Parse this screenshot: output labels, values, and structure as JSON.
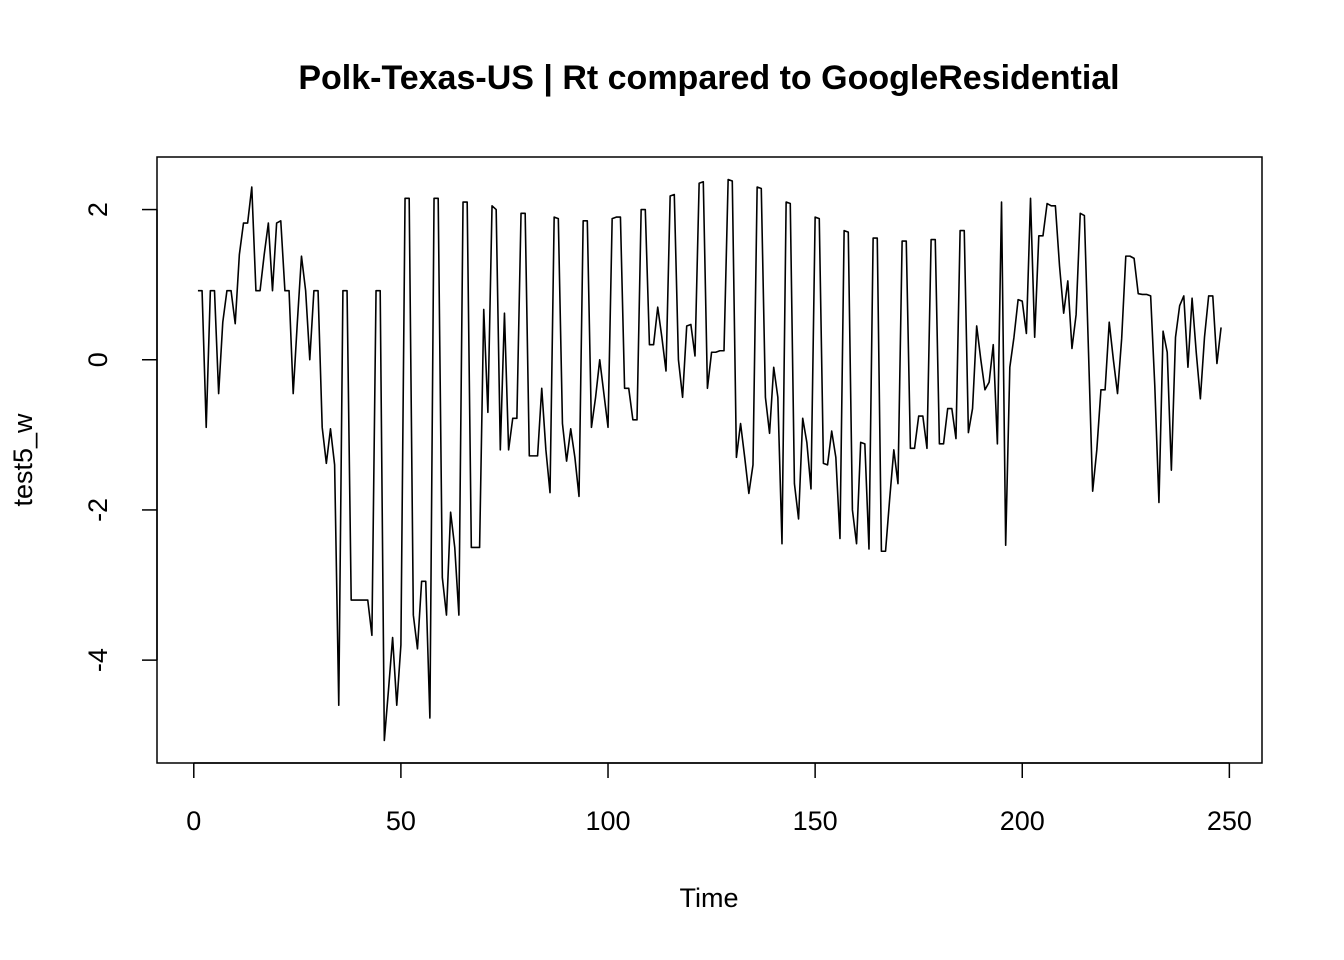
{
  "chart_data": {
    "type": "line",
    "title": "Polk-Texas-US | Rt compared to GoogleResidential",
    "xlabel": "Time",
    "ylabel": "test5_w",
    "color": "#000000",
    "xlim": [
      -8.88,
      257.88
    ],
    "ylim": [
      -5.37,
      2.7
    ],
    "xticks": [
      0,
      50,
      100,
      150,
      200,
      250
    ],
    "yticks": [
      -4,
      -2,
      0,
      2
    ],
    "x": [
      1,
      2,
      3,
      4,
      5,
      6,
      7,
      8,
      9,
      10,
      11,
      12,
      13,
      14,
      15,
      16,
      17,
      18,
      19,
      20,
      21,
      22,
      23,
      24,
      25,
      26,
      27,
      28,
      29,
      30,
      31,
      32,
      33,
      34,
      35,
      36,
      37,
      38,
      39,
      40,
      41,
      42,
      43,
      44,
      45,
      46,
      47,
      48,
      49,
      50,
      51,
      52,
      53,
      54,
      55,
      56,
      57,
      58,
      59,
      60,
      61,
      62,
      63,
      64,
      65,
      66,
      67,
      68,
      69,
      70,
      71,
      72,
      73,
      74,
      75,
      76,
      77,
      78,
      79,
      80,
      81,
      82,
      83,
      84,
      85,
      86,
      87,
      88,
      89,
      90,
      91,
      92,
      93,
      94,
      95,
      96,
      97,
      98,
      99,
      100,
      101,
      102,
      103,
      104,
      105,
      106,
      107,
      108,
      109,
      110,
      111,
      112,
      113,
      114,
      115,
      116,
      117,
      118,
      119,
      120,
      121,
      122,
      123,
      124,
      125,
      126,
      127,
      128,
      129,
      130,
      131,
      132,
      133,
      134,
      135,
      136,
      137,
      138,
      139,
      140,
      141,
      142,
      143,
      144,
      145,
      146,
      147,
      148,
      149,
      150,
      151,
      152,
      153,
      154,
      155,
      156,
      157,
      158,
      159,
      160,
      161,
      162,
      163,
      164,
      165,
      166,
      167,
      168,
      169,
      170,
      171,
      172,
      173,
      174,
      175,
      176,
      177,
      178,
      179,
      180,
      181,
      182,
      183,
      184,
      185,
      186,
      187,
      188,
      189,
      190,
      191,
      192,
      193,
      194,
      195,
      196,
      197,
      198,
      199,
      200,
      201,
      202,
      203,
      204,
      205,
      206,
      207,
      208,
      209,
      210,
      211,
      212,
      213,
      214,
      215,
      216,
      217,
      218,
      219,
      220,
      221,
      222,
      223,
      224,
      225,
      226,
      227,
      228,
      229,
      230,
      231,
      232,
      233,
      234,
      235,
      236,
      237,
      238,
      239,
      240,
      241,
      242,
      243,
      244,
      245,
      246,
      247,
      248
    ],
    "values": [
      0.92,
      0.92,
      -0.9,
      0.92,
      0.92,
      -0.45,
      0.5,
      0.92,
      0.92,
      0.48,
      1.4,
      1.82,
      1.82,
      2.3,
      0.92,
      0.92,
      1.4,
      1.82,
      0.92,
      1.82,
      1.85,
      0.92,
      0.92,
      -0.45,
      0.5,
      1.38,
      0.92,
      0,
      0.92,
      0.92,
      -0.9,
      -1.38,
      -0.92,
      -1.4,
      -4.6,
      0.92,
      0.92,
      -3.2,
      -3.2,
      -3.2,
      -3.2,
      -3.2,
      -3.67,
      0.92,
      0.92,
      -5.07,
      -4.4,
      -3.7,
      -4.6,
      -3.8,
      2.15,
      2.15,
      -3.4,
      -3.85,
      -2.95,
      -2.95,
      -4.77,
      2.15,
      2.15,
      -2.9,
      -3.4,
      -2.03,
      -2.5,
      -3.4,
      2.1,
      2.1,
      -2.5,
      -2.5,
      -2.5,
      0.67,
      -0.7,
      2.05,
      2.0,
      -1.2,
      0.62,
      -1.2,
      -0.78,
      -0.78,
      1.95,
      1.95,
      -1.28,
      -1.28,
      -1.28,
      -0.38,
      -1.2,
      -1.77,
      1.9,
      1.88,
      -0.85,
      -1.35,
      -0.92,
      -1.3,
      -1.82,
      1.85,
      1.85,
      -0.9,
      -0.5,
      0,
      -0.45,
      -0.9,
      1.88,
      1.9,
      1.9,
      -0.38,
      -0.38,
      -0.8,
      -0.8,
      2.0,
      2.0,
      0.2,
      0.2,
      0.7,
      0.3,
      -0.15,
      2.18,
      2.2,
      0,
      -0.5,
      0.45,
      0.47,
      0.05,
      2.35,
      2.37,
      -0.38,
      0.1,
      0.1,
      0.12,
      0.12,
      2.4,
      2.38,
      -1.3,
      -0.85,
      -1.3,
      -1.78,
      -1.4,
      2.3,
      2.28,
      -0.5,
      -0.98,
      -0.1,
      -0.5,
      -2.45,
      2.1,
      2.08,
      -1.65,
      -2.12,
      -0.78,
      -1.1,
      -1.72,
      1.9,
      1.88,
      -1.38,
      -1.4,
      -0.95,
      -1.3,
      -2.38,
      1.72,
      1.7,
      -2.0,
      -2.45,
      -1.1,
      -1.12,
      -2.52,
      1.62,
      1.62,
      -2.55,
      -2.55,
      -1.85,
      -1.2,
      -1.65,
      1.58,
      1.58,
      -1.18,
      -1.18,
      -0.75,
      -0.75,
      -1.18,
      1.6,
      1.6,
      -1.12,
      -1.12,
      -0.65,
      -0.65,
      -1.05,
      1.72,
      1.72,
      -0.97,
      -0.65,
      0.45,
      0,
      -0.4,
      -0.3,
      0.2,
      -1.12,
      2.1,
      -2.47,
      -0.1,
      0.3,
      0.8,
      0.78,
      0.35,
      2.15,
      0.3,
      1.65,
      1.65,
      2.08,
      2.05,
      2.05,
      1.25,
      0.62,
      1.05,
      0.15,
      0.6,
      1.95,
      1.92,
      0.1,
      -1.75,
      -1.2,
      -0.4,
      -0.4,
      0.5,
      0,
      -0.45,
      0.28,
      1.38,
      1.38,
      1.35,
      0.88,
      0.87,
      0.87,
      0.85,
      -0.35,
      -1.9,
      0.38,
      0.1,
      -1.47,
      0.3,
      0.72,
      0.85,
      -0.1,
      0.82,
      0.1,
      -0.52,
      0.3,
      0.85,
      0.85,
      -0.05,
      0.43
    ]
  }
}
